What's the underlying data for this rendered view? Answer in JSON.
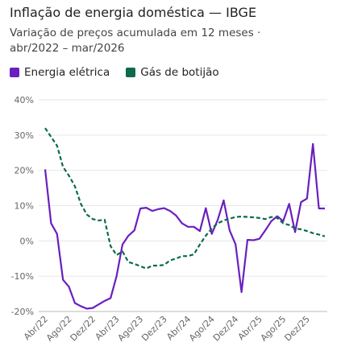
{
  "chart_data": {
    "type": "line",
    "title": "Inflação de energia doméstica — IBGE",
    "subtitle": "Variação de preços acumulada em 12 meses · abr/2022 – mar/2026",
    "categories": [
      "Abr/22",
      null,
      null,
      null,
      "Ago/22",
      null,
      null,
      null,
      "Dez/22",
      null,
      null,
      null,
      "Abr/23",
      null,
      null,
      null,
      "Ago/23",
      null,
      null,
      null,
      "Dez/23",
      null,
      null,
      null,
      "Abr/24",
      null,
      null,
      null,
      "Ago/24",
      null,
      null,
      null,
      "Dez/24",
      null,
      null,
      null,
      "Abr/25",
      null,
      null,
      null,
      "Ago/25",
      null,
      null,
      null,
      "Dez/25",
      null,
      null,
      null
    ],
    "series": [
      {
        "name": "Energia elétrica",
        "color": "#6a1fbf",
        "dash": false,
        "values": [
          20.3,
          5,
          2,
          -11,
          -13,
          -17.6,
          -18.5,
          -19.2,
          -19,
          -18,
          -17,
          -16.2,
          -10,
          -1,
          1.5,
          3,
          9.2,
          9.4,
          8.5,
          9,
          9.3,
          8.5,
          7.2,
          5,
          4,
          4,
          2.8,
          9.3,
          2,
          6,
          11.5,
          3,
          -1,
          -14.5,
          0.3,
          0.2,
          0.6,
          3,
          5.6,
          7,
          5.6,
          10.5,
          2.5,
          11,
          12,
          27.5,
          9.2,
          9.2
        ]
      },
      {
        "name": "Gás de botijão",
        "color": "#0b6b4b",
        "dash": true,
        "values": [
          32,
          29.5,
          27,
          21,
          18.5,
          15.5,
          10.5,
          7.5,
          6.2,
          5.8,
          6,
          -1.5,
          -4,
          -3,
          -6,
          -6.5,
          -7.2,
          -7.8,
          -7,
          -7,
          -6.8,
          -5.5,
          -5,
          -4.3,
          -4.3,
          -3.8,
          -1,
          1.5,
          3.5,
          5,
          5.8,
          6.3,
          6.8,
          6.9,
          6.8,
          6.7,
          6.5,
          6.2,
          6.8,
          6.5,
          5,
          4.5,
          3.5,
          3.3,
          2.8,
          2.2,
          1.8,
          1.3
        ]
      }
    ],
    "ylim": [
      -20,
      40
    ],
    "yticks": [
      {
        "value": -20,
        "label": "-20%"
      },
      {
        "value": -10,
        "label": "-10%"
      },
      {
        "value": 0,
        "label": "0%"
      },
      {
        "value": 10,
        "label": "10%"
      },
      {
        "value": 20,
        "label": "20%"
      },
      {
        "value": 30,
        "label": "30%"
      },
      {
        "value": 40,
        "label": "40%"
      }
    ],
    "grid": true
  }
}
